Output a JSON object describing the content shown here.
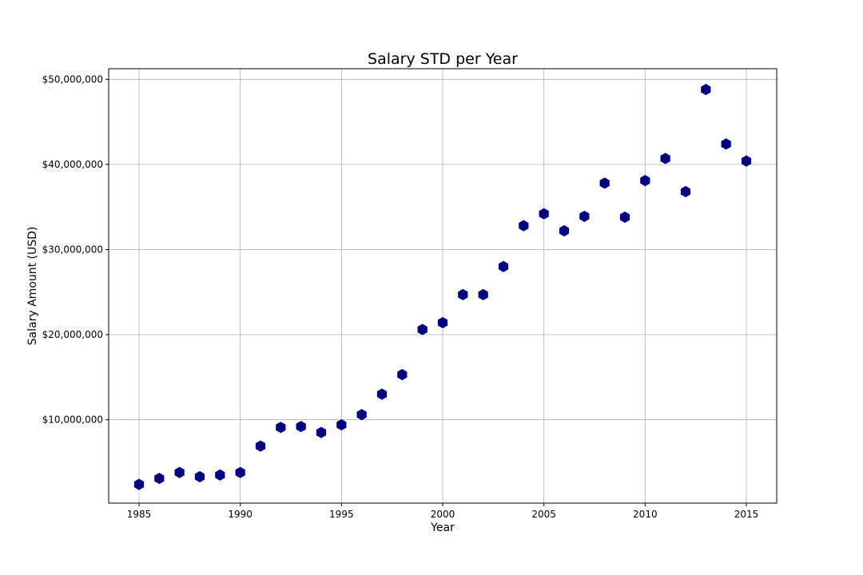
{
  "chart_data": {
    "type": "scatter",
    "title": "Salary STD per Year",
    "xlabel": "Year",
    "ylabel": "Salary Amount (USD)",
    "xlim": [
      1983.5,
      2016.5
    ],
    "ylim": [
      200000,
      51250000
    ],
    "x_ticks": [
      1985,
      1990,
      1995,
      2000,
      2005,
      2010,
      2015
    ],
    "y_ticks": [
      10000000,
      20000000,
      30000000,
      40000000,
      50000000
    ],
    "y_tick_labels": [
      "$10,000,000",
      "$20,000,000",
      "$30,000,000",
      "$40,000,000",
      "$50,000,000"
    ],
    "grid": true,
    "marker": "hexagon",
    "color": "#000080",
    "series": [
      {
        "x": [
          1985,
          1986,
          1987,
          1988,
          1989,
          1990,
          1991,
          1992,
          1993,
          1994,
          1995,
          1996,
          1997,
          1998,
          1999,
          2000,
          2001,
          2002,
          2003,
          2004,
          2005,
          2006,
          2007,
          2008,
          2009,
          2010,
          2011,
          2012,
          2013,
          2014,
          2015
        ],
        "y": [
          2400000,
          3100000,
          3800000,
          3300000,
          3500000,
          3800000,
          6900000,
          9100000,
          9200000,
          8500000,
          9400000,
          10600000,
          13000000,
          15300000,
          20600000,
          21400000,
          24700000,
          24700000,
          28000000,
          32800000,
          34200000,
          32200000,
          33900000,
          37800000,
          33800000,
          38100000,
          40700000,
          36800000,
          48800000,
          42400000,
          40400000
        ]
      }
    ]
  }
}
